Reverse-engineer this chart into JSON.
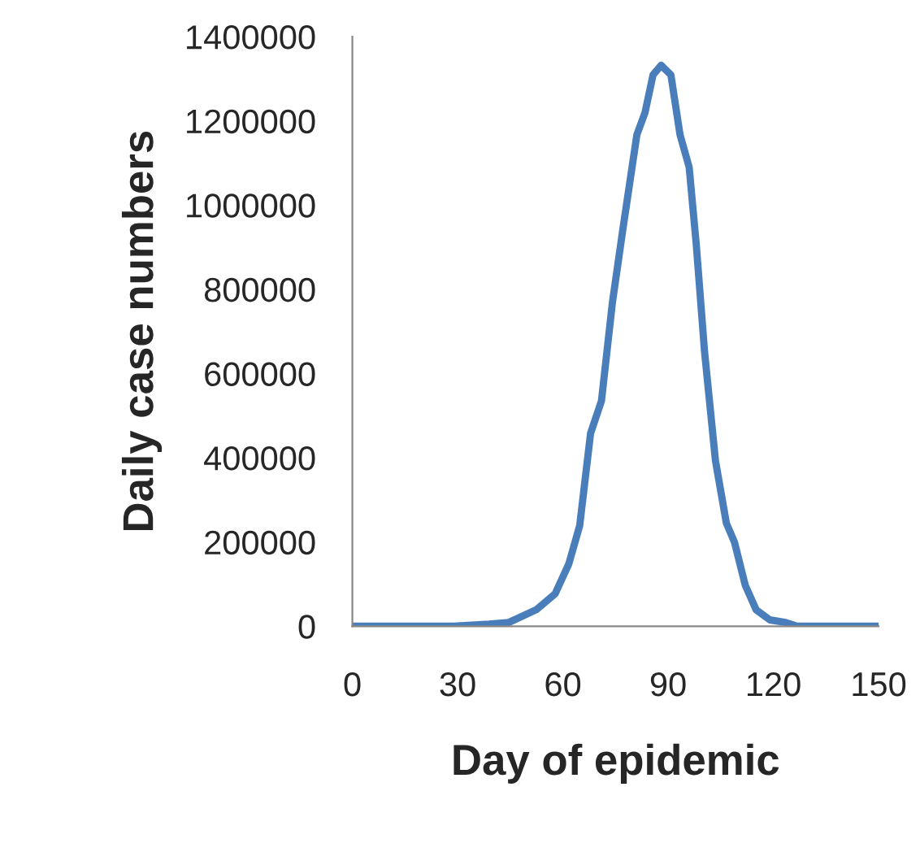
{
  "chart_data": {
    "type": "line",
    "xlabel": "Day of epidemic",
    "ylabel": "Daily case numbers",
    "x": [
      0,
      29,
      39,
      44.6,
      52.4,
      57.8,
      61.7,
      64.8,
      67.9,
      71,
      74.1,
      77.2,
      81.1,
      83.4,
      85.7,
      88,
      90.8,
      93.4,
      96,
      98,
      100.4,
      103.5,
      106.6,
      108.9,
      112,
      115.1,
      119,
      123.5,
      126.7,
      150
    ],
    "series": [
      {
        "color": "#4a7ebb",
        "values": [
          0,
          0,
          5000,
          9000,
          39000,
          77000,
          148000,
          239000,
          458000,
          535000,
          767000,
          948000,
          1167000,
          1219000,
          1309000,
          1332000,
          1309000,
          1167000,
          1090000,
          909000,
          651000,
          393000,
          245000,
          200000,
          97000,
          39000,
          15000,
          9000,
          0,
          0
        ]
      }
    ],
    "xlim": [
      0,
      150
    ],
    "xticks": [
      0,
      30,
      60,
      90,
      120,
      150
    ],
    "ylim": [
      0,
      1400000
    ],
    "yticks": [
      0,
      200000,
      400000,
      600000,
      800000,
      1000000,
      1200000,
      1400000
    ],
    "grid": false,
    "legend": false,
    "marker": "none",
    "line_style": "solid"
  }
}
